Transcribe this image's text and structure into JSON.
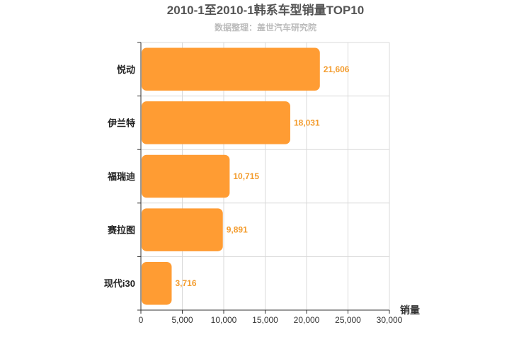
{
  "chart_data": {
    "type": "bar",
    "orientation": "horizontal",
    "title": "2010-1至2010-1韩系车型销量TOP10",
    "subtitle": "数据整理：盖世汽车研究院",
    "categories": [
      "悦动",
      "伊兰特",
      "福瑞迪",
      "赛拉图",
      "现代i30"
    ],
    "values": [
      21606,
      18031,
      10715,
      9891,
      3716
    ],
    "value_labels": [
      "21,606",
      "18,031",
      "10,715",
      "9,891",
      "3,716"
    ],
    "xlabel": "销量",
    "ylabel": "",
    "xlim": [
      0,
      30000
    ],
    "xticks": [
      0,
      5000,
      10000,
      15000,
      20000,
      25000,
      30000
    ],
    "xtick_labels": [
      "0",
      "5,000",
      "10,000",
      "15,000",
      "20,000",
      "25,000",
      "30,000"
    ],
    "grid": true,
    "bar_color": "#ff9c33",
    "label_color": "#f39c2e"
  }
}
